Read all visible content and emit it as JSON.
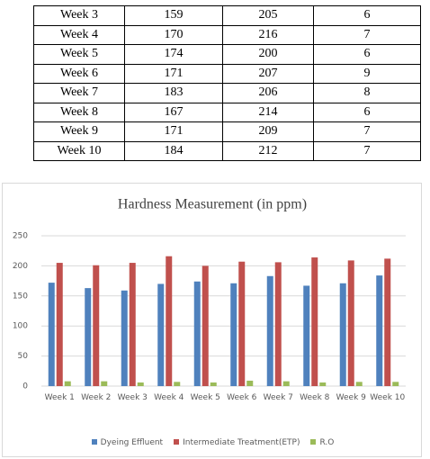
{
  "table": {
    "rows": [
      [
        "Week 3",
        159,
        205,
        6
      ],
      [
        "Week 4",
        170,
        216,
        7
      ],
      [
        "Week 5",
        174,
        200,
        6
      ],
      [
        "Week 6",
        171,
        207,
        9
      ],
      [
        "Week 7",
        183,
        206,
        8
      ],
      [
        "Week 8",
        167,
        214,
        6
      ],
      [
        "Week 9",
        171,
        209,
        7
      ],
      [
        "Week 10",
        184,
        212,
        7
      ]
    ]
  },
  "chart_data": {
    "type": "bar",
    "title": "Hardness Measurement (in ppm)",
    "categories": [
      "Week 1",
      "Week 2",
      "Week 3",
      "Week 4",
      "Week 5",
      "Week 6",
      "Week 7",
      "Week 8",
      "Week 9",
      "Week 10"
    ],
    "series": [
      {
        "name": "Dyeing Effluent",
        "color": "#4f81bd",
        "values": [
          172,
          163,
          159,
          170,
          174,
          171,
          183,
          167,
          171,
          184
        ]
      },
      {
        "name": "Intermediate Treatment(ETP)",
        "color": "#c0504d",
        "values": [
          205,
          201,
          205,
          216,
          200,
          207,
          206,
          214,
          209,
          212
        ]
      },
      {
        "name": "R.O",
        "color": "#9bbb59",
        "values": [
          8,
          8,
          6,
          7,
          6,
          9,
          8,
          6,
          7,
          7
        ]
      }
    ],
    "ylim": [
      0,
      250
    ],
    "yticks": [
      0,
      50,
      100,
      150,
      200,
      250
    ],
    "grid": true,
    "legend": "bottom"
  }
}
